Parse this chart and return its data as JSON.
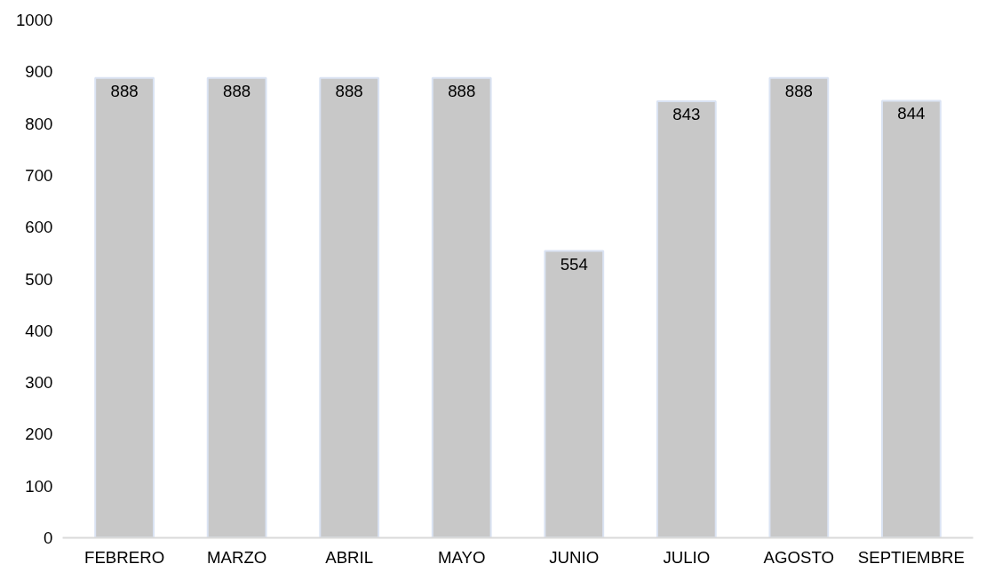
{
  "chart_data": {
    "type": "bar",
    "categories": [
      "FEBRERO",
      "MARZO",
      "ABRIL",
      "MAYO",
      "JUNIO",
      "JULIO",
      "AGOSTO",
      "SEPTIEMBRE"
    ],
    "values": [
      888,
      888,
      888,
      888,
      554,
      843,
      888,
      844
    ],
    "color": "#c8c8c8",
    "ylim": [
      0,
      1000
    ],
    "yticks": [
      0,
      100,
      200,
      300,
      400,
      500,
      600,
      700,
      800,
      900,
      1000
    ],
    "grid": false,
    "data_labels": true
  }
}
